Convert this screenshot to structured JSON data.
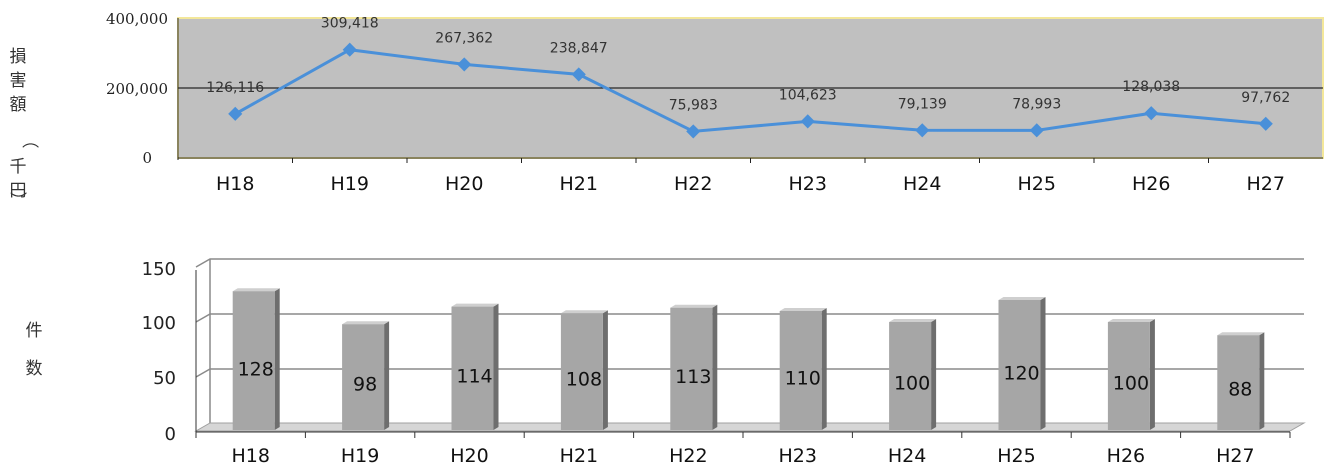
{
  "chart_data": [
    {
      "type": "line",
      "categories": [
        "H18",
        "H19",
        "H20",
        "H21",
        "H22",
        "H23",
        "H24",
        "H25",
        "H26",
        "H27"
      ],
      "values": [
        126116,
        309418,
        267362,
        238847,
        75983,
        104623,
        79139,
        78993,
        128038,
        97762
      ],
      "value_labels": [
        "126,116",
        "309,418",
        "267,362",
        "238,847",
        "75,983",
        "104,623",
        "79,139",
        "78,993",
        "128,038",
        "97,762"
      ],
      "ylabel": "損害額（千円）",
      "yticks": [
        "0",
        "200,000",
        "400,000"
      ],
      "ylim": [
        0,
        400000
      ],
      "grid": true,
      "plot_background": "#c0c0c0",
      "series_color": "#4a90d9"
    },
    {
      "type": "bar",
      "categories": [
        "H18",
        "H19",
        "H20",
        "H21",
        "H22",
        "H23",
        "H24",
        "H25",
        "H26",
        "H27"
      ],
      "values": [
        128,
        98,
        114,
        108,
        113,
        110,
        100,
        120,
        100,
        88
      ],
      "value_labels": [
        "128",
        "98",
        "114",
        "108",
        "113",
        "110",
        "100",
        "120",
        "100",
        "88"
      ],
      "ylabel": "件数",
      "yticks": [
        "0",
        "50",
        "100",
        "150"
      ],
      "ylim": [
        0,
        150
      ],
      "grid": true,
      "bar_color": "#a6a6a6"
    }
  ]
}
